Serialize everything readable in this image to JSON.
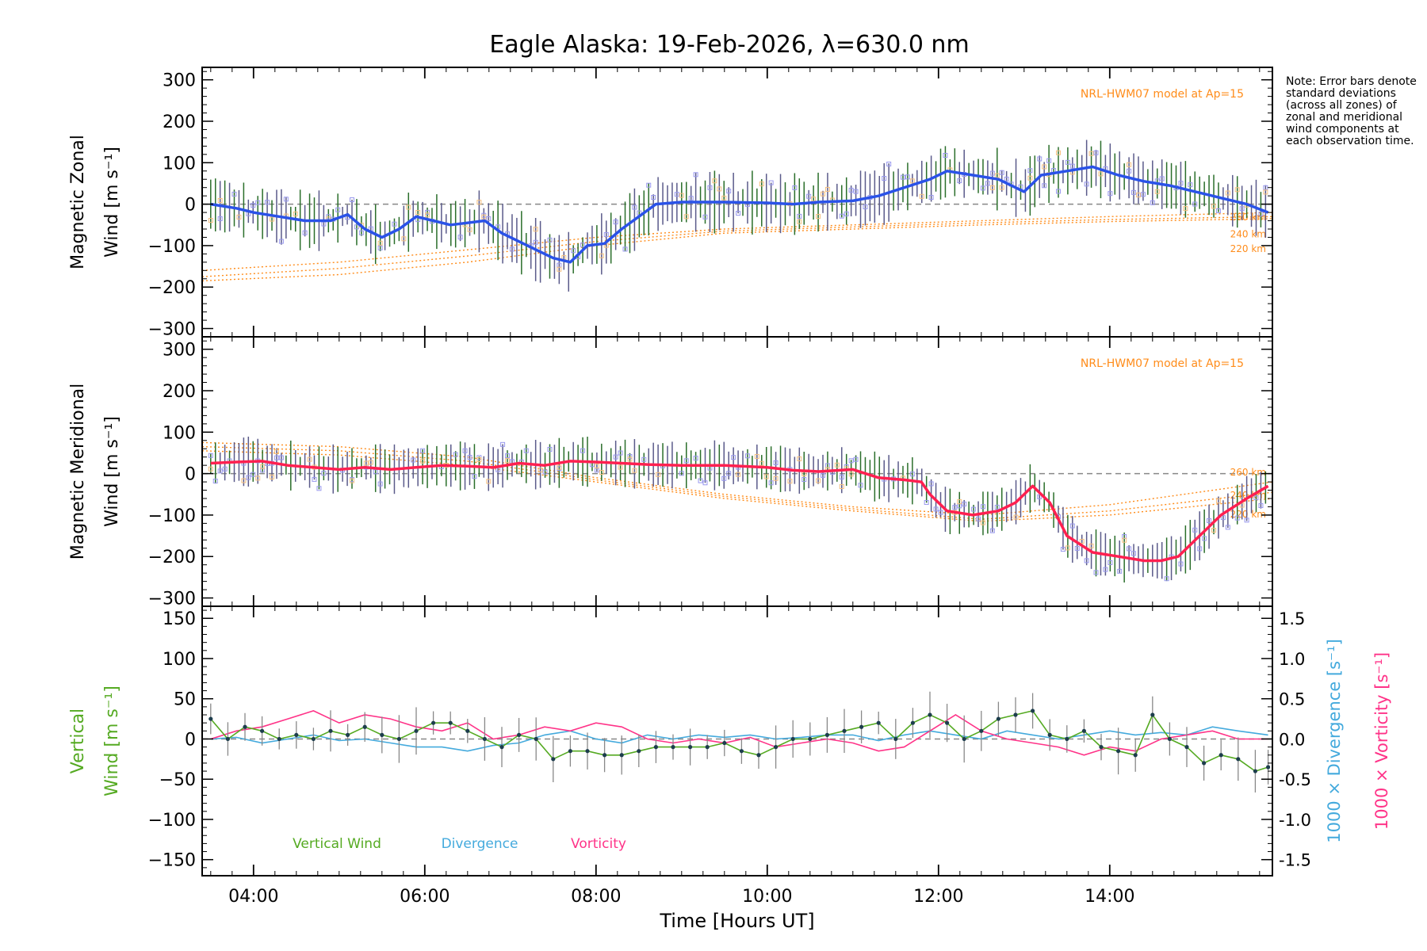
{
  "chart_data": {
    "title": "Eagle Alaska: 19-Feb-2026, λ=630.0 nm",
    "xlabel": "Time [Hours UT]",
    "xlim": [
      3.4,
      15.9
    ],
    "xticks": [
      4,
      6,
      8,
      10,
      12,
      14
    ],
    "xticklabels": [
      "04:00",
      "06:00",
      "08:00",
      "10:00",
      "12:00",
      "14:00"
    ],
    "note": "Note: Error bars denote standard deviations (across all zones) of zonal and meridional wind components at each observation time.",
    "colors": {
      "zonal": "#2a52e8",
      "meridional": "#ff2050",
      "vertical": "#55aa22",
      "divergence": "#44aadd",
      "vorticity": "#ff3388",
      "model": "#ff8c1a",
      "zone_box": "#9999ee"
    },
    "panels": [
      {
        "name": "zonal",
        "type": "line",
        "ylabel_line1": "Magnetic Zonal",
        "ylabel_line2": "Wind [m s⁻¹]",
        "ylim": [
          -320,
          330
        ],
        "yticks": [
          -300,
          -200,
          -100,
          0,
          100,
          200,
          300
        ],
        "model_label": "NRL-HWM07 model at Ap=15",
        "model_height_labels": [
          "260 km",
          "240 km",
          "220 km"
        ],
        "series": [
          {
            "name": "Zonal wind",
            "x": [
              3.5,
              3.8,
              4.0,
              4.3,
              4.6,
              4.9,
              5.1,
              5.3,
              5.5,
              5.7,
              5.9,
              6.1,
              6.3,
              6.5,
              6.7,
              6.9,
              7.1,
              7.3,
              7.5,
              7.7,
              7.9,
              8.1,
              8.3,
              8.5,
              8.7,
              9.0,
              9.5,
              10.0,
              10.3,
              10.6,
              11.0,
              11.3,
              11.6,
              11.9,
              12.1,
              12.4,
              12.7,
              13.0,
              13.2,
              13.5,
              13.8,
              14.1,
              14.4,
              14.7,
              15.0,
              15.3,
              15.6,
              15.85
            ],
            "y": [
              0,
              -10,
              -20,
              -30,
              -40,
              -40,
              -25,
              -60,
              -80,
              -60,
              -30,
              -40,
              -50,
              -45,
              -40,
              -70,
              -90,
              -110,
              -130,
              -140,
              -100,
              -95,
              -60,
              -30,
              0,
              5,
              5,
              3,
              0,
              5,
              8,
              20,
              40,
              60,
              80,
              70,
              60,
              30,
              70,
              80,
              90,
              70,
              55,
              45,
              30,
              15,
              0,
              -20
            ]
          }
        ],
        "models": [
          {
            "name": "260 km",
            "x": [
              3.4,
              5.0,
              6.5,
              8.0,
              9.5,
              11.0,
              12.5,
              14.0,
              15.9
            ],
            "y": [
              -160,
              -140,
              -110,
              -80,
              -60,
              -50,
              -40,
              -30,
              -20
            ]
          },
          {
            "name": "240 km",
            "x": [
              3.4,
              5.0,
              6.5,
              8.0,
              9.5,
              11.0,
              12.5,
              14.0,
              15.9
            ],
            "y": [
              -175,
              -155,
              -125,
              -90,
              -65,
              -55,
              -45,
              -37,
              -30
            ]
          },
          {
            "name": "220 km",
            "x": [
              3.4,
              5.0,
              6.5,
              8.0,
              9.5,
              11.0,
              12.5,
              14.0,
              15.9
            ],
            "y": [
              -185,
              -170,
              -140,
              -100,
              -70,
              -60,
              -50,
              -42,
              -35
            ]
          }
        ]
      },
      {
        "name": "meridional",
        "type": "line",
        "ylabel_line1": "Magnetic Meridional",
        "ylabel_line2": "Wind [m s⁻¹]",
        "ylim": [
          -320,
          330
        ],
        "yticks": [
          -300,
          -200,
          -100,
          0,
          100,
          200,
          300
        ],
        "model_label": "NRL-HWM07 model at Ap=15",
        "model_height_labels": [
          "260 km",
          "240 km",
          "220 km"
        ],
        "series": [
          {
            "name": "Meridional wind",
            "x": [
              3.5,
              3.8,
              4.1,
              4.4,
              4.7,
              5.0,
              5.3,
              5.6,
              5.9,
              6.2,
              6.5,
              6.8,
              7.1,
              7.4,
              7.7,
              8.0,
              8.3,
              8.6,
              9.0,
              9.5,
              10.0,
              10.3,
              10.6,
              11.0,
              11.3,
              11.6,
              11.8,
              11.9,
              12.1,
              12.4,
              12.7,
              12.9,
              13.1,
              13.3,
              13.5,
              13.8,
              14.1,
              14.4,
              14.6,
              14.8,
              15.0,
              15.3,
              15.6,
              15.85
            ],
            "y": [
              25,
              28,
              30,
              20,
              15,
              10,
              15,
              10,
              15,
              20,
              18,
              15,
              25,
              20,
              30,
              28,
              25,
              22,
              20,
              20,
              15,
              8,
              5,
              10,
              -10,
              -15,
              -20,
              -50,
              -90,
              -100,
              -90,
              -70,
              -30,
              -70,
              -150,
              -190,
              -200,
              -210,
              -210,
              -200,
              -160,
              -100,
              -60,
              -30
            ]
          }
        ],
        "models": [
          {
            "name": "260 km",
            "x": [
              3.4,
              5.0,
              6.5,
              8.0,
              9.5,
              11.0,
              12.5,
              14.0,
              15.9
            ],
            "y": [
              75,
              65,
              40,
              -10,
              -50,
              -80,
              -100,
              -75,
              -20
            ]
          },
          {
            "name": "240 km",
            "x": [
              3.4,
              5.0,
              6.5,
              8.0,
              9.5,
              11.0,
              12.5,
              14.0,
              15.9
            ],
            "y": [
              65,
              55,
              30,
              -15,
              -55,
              -85,
              -110,
              -90,
              -45
            ]
          },
          {
            "name": "220 km",
            "x": [
              3.4,
              5.0,
              6.5,
              8.0,
              9.5,
              11.0,
              12.5,
              14.0,
              15.9
            ],
            "y": [
              55,
              45,
              20,
              -20,
              -60,
              -90,
              -115,
              -100,
              -60
            ]
          }
        ]
      },
      {
        "name": "vertical",
        "type": "line",
        "ylabel_line1": "Vertical",
        "ylabel_line2": "Wind [m s⁻¹]",
        "ylim": [
          -170,
          165
        ],
        "yticks": [
          -150,
          -100,
          -50,
          0,
          50,
          100,
          150
        ],
        "y2lim": [
          -1.7,
          1.65
        ],
        "y2ticks": [
          -1.5,
          -1.0,
          -0.5,
          0.0,
          0.5,
          1.0,
          1.5
        ],
        "y2label_divergence": "1000 × Divergence [s⁻¹]",
        "y2label_vorticity": "1000 × Vorticity [s⁻¹]",
        "legend": [
          "Vertical Wind",
          "Divergence",
          "Vorticity"
        ],
        "series": [
          {
            "name": "Vertical Wind",
            "x": [
              3.5,
              3.7,
              3.9,
              4.1,
              4.3,
              4.5,
              4.7,
              4.9,
              5.1,
              5.3,
              5.5,
              5.7,
              5.9,
              6.1,
              6.3,
              6.5,
              6.7,
              6.9,
              7.1,
              7.3,
              7.5,
              7.7,
              7.9,
              8.1,
              8.3,
              8.5,
              8.7,
              8.9,
              9.1,
              9.3,
              9.5,
              9.7,
              9.9,
              10.1,
              10.3,
              10.5,
              10.7,
              10.9,
              11.1,
              11.3,
              11.5,
              11.7,
              11.9,
              12.1,
              12.3,
              12.5,
              12.7,
              12.9,
              13.1,
              13.3,
              13.5,
              13.7,
              13.9,
              14.1,
              14.3,
              14.5,
              14.7,
              14.9,
              15.1,
              15.3,
              15.5,
              15.7,
              15.85
            ],
            "y": [
              25,
              0,
              15,
              10,
              0,
              5,
              0,
              10,
              5,
              15,
              5,
              0,
              10,
              20,
              20,
              10,
              0,
              -10,
              5,
              0,
              -25,
              -15,
              -15,
              -20,
              -20,
              -15,
              -10,
              -10,
              -10,
              -10,
              -5,
              -15,
              -20,
              -10,
              0,
              0,
              5,
              10,
              15,
              20,
              0,
              20,
              30,
              20,
              0,
              10,
              25,
              30,
              35,
              5,
              0,
              10,
              -10,
              -15,
              -20,
              30,
              0,
              -10,
              -30,
              -20,
              -25,
              -40,
              -35
            ]
          },
          {
            "name": "Divergence",
            "x": [
              3.5,
              3.8,
              4.1,
              4.4,
              4.7,
              5.0,
              5.3,
              5.6,
              5.9,
              6.2,
              6.5,
              6.8,
              7.1,
              7.4,
              7.7,
              8.0,
              8.3,
              8.6,
              8.9,
              9.2,
              9.5,
              9.8,
              10.1,
              10.4,
              10.7,
              11.0,
              11.3,
              11.6,
              11.9,
              12.2,
              12.5,
              12.8,
              13.1,
              13.4,
              13.7,
              14.0,
              14.3,
              14.6,
              14.9,
              15.2,
              15.5,
              15.85
            ],
            "y": [
              0.0,
              0.02,
              -0.05,
              0.0,
              0.05,
              -0.02,
              0.0,
              -0.05,
              -0.1,
              -0.1,
              -0.15,
              -0.08,
              -0.05,
              0.05,
              0.1,
              0.0,
              -0.05,
              0.05,
              0.0,
              0.05,
              0.02,
              0.05,
              0.0,
              0.02,
              0.05,
              0.05,
              -0.02,
              0.05,
              0.1,
              0.05,
              0.0,
              0.1,
              0.05,
              0.0,
              0.05,
              0.1,
              0.05,
              0.08,
              0.05,
              0.15,
              0.1,
              0.05
            ]
          },
          {
            "name": "Vorticity",
            "x": [
              3.5,
              3.8,
              4.1,
              4.4,
              4.7,
              5.0,
              5.3,
              5.6,
              5.9,
              6.2,
              6.5,
              6.8,
              7.1,
              7.4,
              7.7,
              8.0,
              8.3,
              8.6,
              8.9,
              9.2,
              9.5,
              9.8,
              10.1,
              10.4,
              10.7,
              11.0,
              11.3,
              11.6,
              11.9,
              12.2,
              12.5,
              12.8,
              13.1,
              13.4,
              13.7,
              14.0,
              14.3,
              14.6,
              14.9,
              15.2,
              15.5,
              15.85
            ],
            "y": [
              0.0,
              0.1,
              0.15,
              0.25,
              0.35,
              0.2,
              0.3,
              0.25,
              0.15,
              0.1,
              0.2,
              0.0,
              0.05,
              0.15,
              0.1,
              0.2,
              0.15,
              0.0,
              -0.05,
              0.0,
              -0.05,
              0.02,
              -0.1,
              -0.05,
              0.0,
              -0.05,
              -0.15,
              -0.1,
              0.1,
              0.3,
              0.1,
              0.0,
              -0.05,
              -0.1,
              -0.2,
              -0.1,
              -0.15,
              0.0,
              0.05,
              0.1,
              0.0,
              0.0
            ]
          }
        ]
      }
    ]
  }
}
